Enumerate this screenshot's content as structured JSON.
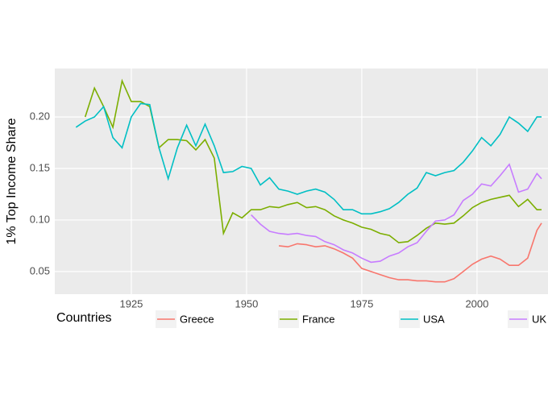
{
  "chart_data": {
    "type": "line",
    "y_label": "1% Top Income Share",
    "legend_title": "Countries",
    "x": [
      1913,
      1915,
      1917,
      1919,
      1921,
      1923,
      1925,
      1927,
      1929,
      1931,
      1933,
      1935,
      1937,
      1939,
      1941,
      1943,
      1945,
      1947,
      1949,
      1951,
      1953,
      1955,
      1957,
      1959,
      1961,
      1963,
      1965,
      1967,
      1969,
      1971,
      1973,
      1975,
      1977,
      1979,
      1981,
      1983,
      1985,
      1987,
      1989,
      1991,
      1993,
      1995,
      1997,
      1999,
      2001,
      2003,
      2005,
      2007,
      2009,
      2011,
      2013,
      2014
    ],
    "series": [
      {
        "name": "Greece",
        "color": "#F8766D",
        "values": [
          null,
          null,
          null,
          null,
          null,
          null,
          null,
          null,
          null,
          null,
          null,
          null,
          null,
          null,
          null,
          null,
          null,
          null,
          null,
          null,
          null,
          null,
          0.075,
          0.074,
          0.077,
          0.076,
          0.074,
          0.075,
          0.072,
          0.068,
          0.063,
          0.053,
          0.05,
          0.047,
          0.044,
          0.042,
          0.042,
          0.041,
          0.041,
          0.04,
          0.04,
          0.043,
          0.05,
          0.057,
          0.062,
          0.065,
          0.062,
          0.056,
          0.056,
          0.063,
          0.09,
          0.097
        ]
      },
      {
        "name": "France",
        "color": "#7CAE00",
        "values": [
          null,
          0.2,
          0.228,
          0.21,
          0.19,
          0.235,
          0.215,
          0.215,
          0.21,
          0.17,
          0.178,
          0.178,
          0.177,
          0.168,
          0.178,
          0.16,
          0.087,
          0.107,
          0.102,
          0.11,
          0.11,
          0.113,
          0.112,
          0.115,
          0.117,
          0.112,
          0.113,
          0.11,
          0.104,
          0.1,
          0.097,
          0.093,
          0.091,
          0.087,
          0.085,
          0.078,
          0.079,
          0.085,
          0.092,
          0.097,
          0.096,
          0.097,
          0.104,
          0.112,
          0.117,
          0.12,
          0.122,
          0.124,
          0.113,
          0.12,
          0.11,
          0.11
        ]
      },
      {
        "name": "USA",
        "color": "#00BFC4",
        "values": [
          0.19,
          0.196,
          0.2,
          0.21,
          0.18,
          0.17,
          0.2,
          0.213,
          0.212,
          0.17,
          0.14,
          0.17,
          0.192,
          0.172,
          0.193,
          0.172,
          0.146,
          0.147,
          0.152,
          0.15,
          0.134,
          0.141,
          0.13,
          0.128,
          0.125,
          0.128,
          0.13,
          0.127,
          0.12,
          0.11,
          0.11,
          0.106,
          0.106,
          0.108,
          0.111,
          0.117,
          0.125,
          0.131,
          0.146,
          0.143,
          0.146,
          0.148,
          0.156,
          0.167,
          0.18,
          0.172,
          0.183,
          0.2,
          0.194,
          0.186,
          0.2,
          0.2
        ]
      },
      {
        "name": "UK",
        "color": "#C77CFF",
        "values": [
          null,
          null,
          null,
          null,
          null,
          null,
          null,
          null,
          null,
          null,
          null,
          null,
          null,
          null,
          null,
          null,
          null,
          null,
          null,
          0.105,
          0.096,
          0.089,
          0.087,
          0.086,
          0.087,
          0.085,
          0.084,
          0.079,
          0.076,
          0.071,
          0.068,
          0.063,
          0.059,
          0.06,
          0.065,
          0.068,
          0.074,
          0.078,
          0.089,
          0.099,
          0.1,
          0.105,
          0.119,
          0.125,
          0.135,
          0.133,
          0.143,
          0.154,
          0.127,
          0.13,
          0.145,
          0.14
        ]
      }
    ],
    "xlim": [
      1908.4,
      2015.4
    ],
    "xticks": [
      1925,
      1950,
      1975,
      2000
    ],
    "ylim": [
      0.028,
      0.247
    ],
    "yticks": [
      0.05,
      {
        "value": 0.1,
        "label": "0.10"
      },
      0.15,
      {
        "value": 0.2,
        "label": "0.20"
      }
    ],
    "grid": true
  }
}
